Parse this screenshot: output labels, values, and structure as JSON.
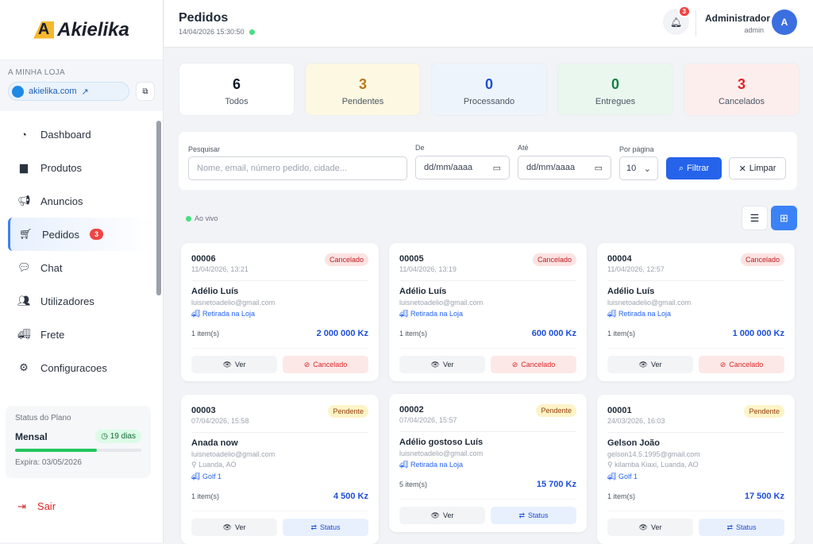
{
  "sidebar": {
    "brand": "Akielika",
    "store_label": "A MINHA LOJA",
    "store_link": "akielika.com",
    "items": [
      {
        "label": "Dashboard",
        "icon": "chart-pie-icon"
      },
      {
        "label": "Produtos",
        "icon": "box-icon"
      },
      {
        "label": "Anuncios",
        "icon": "megaphone-icon"
      },
      {
        "label": "Pedidos",
        "icon": "cart-icon",
        "badge": "3",
        "active": true
      },
      {
        "label": "Chat",
        "icon": "chat-icon"
      },
      {
        "label": "Utilizadores",
        "icon": "users-icon"
      },
      {
        "label": "Frete",
        "icon": "truck-icon"
      },
      {
        "label": "Configuracoes",
        "icon": "gear-icon"
      }
    ],
    "plan": {
      "title": "Status do Plano",
      "name": "Mensal",
      "days": "19 dias",
      "progress_percent": 65,
      "expires": "Expira: 03/05/2026"
    },
    "logout": "Sair"
  },
  "header": {
    "title": "Pedidos",
    "datetime": "14/04/2026 15:30:50",
    "notifications": "3",
    "user_name": "Administrador",
    "user_role": "admin",
    "avatar": "A"
  },
  "stats": [
    {
      "value": "6",
      "label": "Todos",
      "color": "#111827",
      "bg": "#ffffff"
    },
    {
      "value": "3",
      "label": "Pendentes",
      "color": "#b7791f",
      "bg": "#fdf8e1"
    },
    {
      "value": "0",
      "label": "Processando",
      "color": "#1d4ed8",
      "bg": "#eef4fc"
    },
    {
      "value": "0",
      "label": "Entregues",
      "color": "#15803d",
      "bg": "#eaf7ef"
    },
    {
      "value": "3",
      "label": "Cancelados",
      "color": "#dc2626",
      "bg": "#fdeeee"
    }
  ],
  "filters": {
    "search_label": "Pesquisar",
    "search_placeholder": "Nome, email, número pedido, cidade...",
    "from_label": "De",
    "from_value": "dd/mm/aaaa",
    "to_label": "Até",
    "to_value": "dd/mm/aaaa",
    "per_page_label": "Por página",
    "per_page": "10",
    "filter_btn": "Filtrar",
    "clear_btn": "Limpar"
  },
  "live": "Ao vivo",
  "orders": [
    {
      "id": "00006",
      "date": "11/04/2026, 13:21",
      "status": "Cancelado",
      "name": "Adélio Luís",
      "email": "luisnetoadelio@gmail.com",
      "location": "",
      "shipping": "Retirada na Loja",
      "items": "1 item(s)",
      "total": "2 000 000 Kz",
      "view": "Ver",
      "action": "Cancelado"
    },
    {
      "id": "00005",
      "date": "11/04/2026, 13:19",
      "status": "Cancelado",
      "name": "Adélio Luís",
      "email": "luisnetoadelio@gmail.com",
      "location": "",
      "shipping": "Retirada na Loja",
      "items": "1 item(s)",
      "total": "600 000 Kz",
      "view": "Ver",
      "action": "Cancelado"
    },
    {
      "id": "00004",
      "date": "11/04/2026, 12:57",
      "status": "Cancelado",
      "name": "Adélio Luís",
      "email": "luisnetoadelio@gmail.com",
      "location": "",
      "shipping": "Retirada na Loja",
      "items": "1 item(s)",
      "total": "1 000 000 Kz",
      "view": "Ver",
      "action": "Cancelado"
    },
    {
      "id": "00003",
      "date": "07/04/2026, 15:58",
      "status": "Pendente",
      "name": "Anada now",
      "email": "luisnetoadelio@gmail.com",
      "location": "Luanda, AO",
      "shipping": "Golf 1",
      "items": "1 item(s)",
      "total": "4 500 Kz",
      "view": "Ver",
      "action": "Status"
    },
    {
      "id": "00002",
      "date": "07/04/2026, 15:57",
      "status": "Pendente",
      "name": "Adélio gostoso Luís",
      "email": "luisnetoadelio@gmail.com",
      "location": "",
      "shipping": "Retirada na Loja",
      "items": "5 item(s)",
      "total": "15 700 Kz",
      "view": "Ver",
      "action": "Status"
    },
    {
      "id": "00001",
      "date": "24/03/2026, 16:03",
      "status": "Pendente",
      "name": "Gelson João",
      "email": "gelson14.5.1995@gmail.com",
      "location": "kilamba Kiaxi, Luanda, AO",
      "shipping": "Golf 1",
      "items": "1 item(s)",
      "total": "17 500 Kz",
      "view": "Ver",
      "action": "Status"
    }
  ]
}
